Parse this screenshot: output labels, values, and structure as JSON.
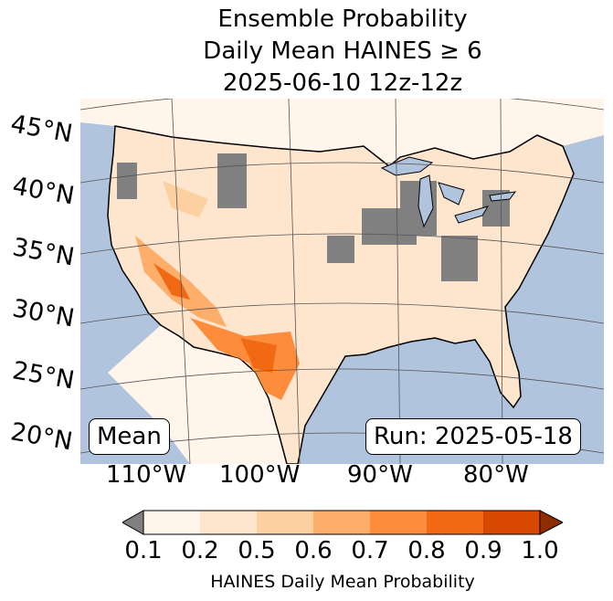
{
  "title": {
    "line1": "Ensemble Probability",
    "line2": "Daily Mean HAINES ≥ 6",
    "line3": "2025-06-10 12z-12z"
  },
  "map": {
    "lat_labels": [
      "45°N",
      "40°N",
      "35°N",
      "30°N",
      "25°N",
      "20°N"
    ],
    "lon_labels": [
      "110°W",
      "100°W",
      "90°W",
      "80°W"
    ],
    "mean_label": "Mean",
    "run_label": "Run: 2025-05-18",
    "colors": {
      "ocean": "#b0c4de",
      "nodata": "#808080"
    }
  },
  "colorbar": {
    "ticks": [
      "0.1",
      "0.2",
      "0.5",
      "0.6",
      "0.7",
      "0.8",
      "0.9",
      "1.0"
    ],
    "colors": [
      "#fff5eb",
      "#fee6ce",
      "#fdd0a2",
      "#fdae6b",
      "#fd8d3c",
      "#f16913",
      "#d94801"
    ],
    "under_color": "#808080",
    "over_color": "#8c2d04",
    "label": "HAINES Daily Mean Probability"
  }
}
